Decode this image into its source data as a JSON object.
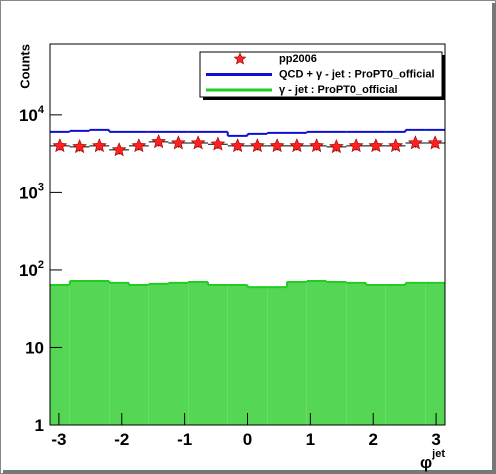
{
  "chart_data": {
    "type": "histogram",
    "y_label": "Counts",
    "x_label": "φ",
    "x_label_superscript": "jet",
    "bins": [
      -3.1416,
      -2.8274,
      -2.5133,
      -2.1991,
      -1.885,
      -1.5708,
      -1.2566,
      -0.9425,
      -0.6283,
      -0.3142,
      0,
      0.3142,
      0.6283,
      0.9425,
      1.2566,
      1.5708,
      1.885,
      2.1991,
      2.5133,
      2.8274,
      3.1416
    ],
    "xlim": [
      -3.1416,
      3.1416
    ],
    "xticks": [
      -3,
      -2,
      -1,
      0,
      1,
      2,
      3
    ],
    "ylim": [
      1,
      82000
    ],
    "log_y": true,
    "yticks": [
      1,
      10,
      {
        "value": 100,
        "label": "10",
        "exponent": "2"
      },
      {
        "value": 1000,
        "label": "10",
        "exponent": "3"
      },
      {
        "value": 10000,
        "label": "10",
        "exponent": "4"
      }
    ],
    "legend": "top-right",
    "series": [
      {
        "name": "pp2006",
        "style": "points",
        "color": "#ff2020",
        "values": [
          3980,
          3870,
          3980,
          3530,
          3980,
          4490,
          4330,
          4330,
          4180,
          3980,
          3980,
          3980,
          3980,
          3980,
          3870,
          3980,
          3980,
          3980,
          4330,
          4330
        ],
        "errors": [
          63,
          62,
          63,
          59,
          63,
          67,
          66,
          66,
          65,
          63,
          63,
          63,
          63,
          63,
          62,
          63,
          63,
          63,
          66,
          66
        ]
      },
      {
        "name": "QCD + γ - jet : ProPT0_official",
        "style": "step",
        "color": "#1010d0",
        "values": [
          6040,
          6220,
          6400,
          6040,
          6040,
          6040,
          6040,
          6040,
          6040,
          5350,
          5680,
          5860,
          5860,
          6040,
          6040,
          6040,
          6040,
          6040,
          6400,
          6400
        ]
      },
      {
        "name": "γ - jet : ProPT0_official",
        "style": "filled",
        "color": "#55d655",
        "edge_color": "#22cc22",
        "values": [
          64,
          72,
          72,
          68,
          64,
          66,
          68,
          70,
          64,
          64,
          60,
          60,
          70,
          72,
          70,
          68,
          64,
          64,
          68,
          68
        ]
      }
    ]
  }
}
